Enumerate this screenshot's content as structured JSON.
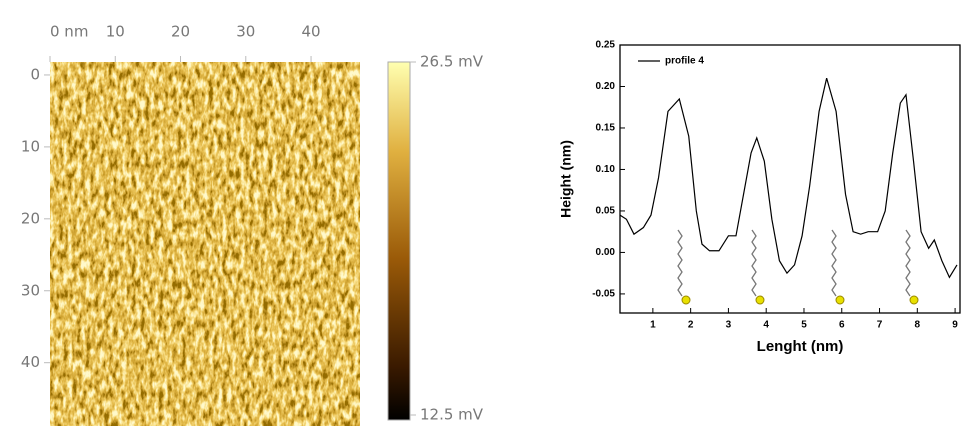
{
  "chart_data": [
    {
      "type": "image",
      "xlim": [
        0,
        47.5
      ],
      "xticks": [
        {
          "value": 0,
          "label": "0 nm"
        },
        10,
        20,
        30,
        40
      ],
      "ylim": [
        -1.8,
        48.8
      ],
      "yticks": [
        0,
        10,
        20,
        30,
        40
      ],
      "clim": [
        12.5,
        26.5
      ],
      "cticks": [
        {
          "value": 26.5,
          "label": "26.5 mV"
        },
        {
          "value": 12.5,
          "label": "12.5 mV"
        }
      ]
    },
    {
      "type": "line",
      "xlabel": "Lenght (nm)",
      "ylabel": "Height (nm)",
      "xlim": [
        0.13,
        9.13
      ],
      "xticks": [
        1,
        2,
        3,
        4,
        5,
        6,
        7,
        8,
        9
      ],
      "ylim": [
        -0.073,
        0.25
      ],
      "yticks": [
        -0.05,
        {
          "value": 0,
          "label": "0.00"
        },
        0.05,
        {
          "value": 0.1,
          "label": "0.10"
        },
        0.15,
        {
          "value": 0.2,
          "label": "0.20"
        },
        0.25
      ],
      "legend": "upper left",
      "series": [
        {
          "name": "profile 4",
          "color": "#000000",
          "x": [
            0.13,
            0.3,
            0.5,
            0.75,
            0.95,
            1.15,
            1.4,
            1.7,
            1.95,
            2.15,
            2.3,
            2.5,
            2.75,
            3.0,
            3.2,
            3.4,
            3.6,
            3.75,
            3.95,
            4.15,
            4.35,
            4.55,
            4.75,
            4.95,
            5.15,
            5.4,
            5.6,
            5.85,
            6.1,
            6.3,
            6.5,
            6.7,
            6.95,
            7.15,
            7.35,
            7.55,
            7.7,
            7.9,
            8.1,
            8.3,
            8.45,
            8.65,
            8.85,
            9.05
          ],
          "values": [
            0.045,
            0.04,
            0.022,
            0.03,
            0.045,
            0.09,
            0.17,
            0.185,
            0.14,
            0.05,
            0.01,
            0.002,
            0.002,
            0.02,
            0.02,
            0.07,
            0.12,
            0.138,
            0.11,
            0.04,
            -0.01,
            -0.025,
            -0.015,
            0.02,
            0.08,
            0.17,
            0.21,
            0.17,
            0.07,
            0.025,
            0.022,
            0.025,
            0.025,
            0.05,
            0.12,
            0.18,
            0.19,
            0.11,
            0.025,
            0.005,
            0.015,
            -0.01,
            -0.03,
            -0.015
          ]
        }
      ]
    }
  ]
}
